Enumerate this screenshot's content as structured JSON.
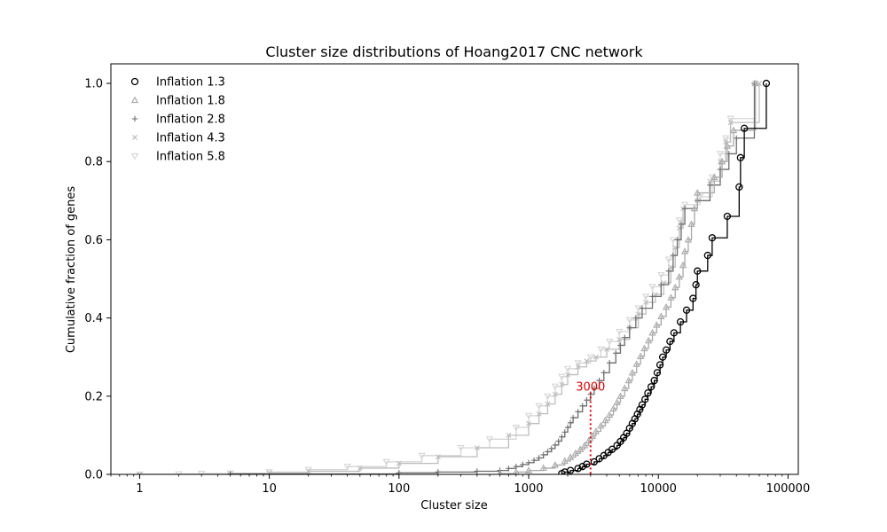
{
  "chart_data": {
    "type": "line",
    "title": "Cluster size distributions of Hoang2017 CNC network",
    "xlabel": "Cluster size",
    "ylabel": "Cumulative fraction of genes",
    "xscale": "log",
    "xlim": [
      0.6,
      120000
    ],
    "ylim": [
      0,
      1.05
    ],
    "xticks": [
      1,
      10,
      100,
      1000,
      10000,
      100000
    ],
    "xtick_labels": [
      "1",
      "10",
      "100",
      "1000",
      "10000",
      "100000"
    ],
    "yticks": [
      0,
      0.2,
      0.4,
      0.6,
      0.8,
      1.0
    ],
    "ytick_labels": [
      "0.0",
      "0.2",
      "0.4",
      "0.6",
      "0.8",
      "1.0"
    ],
    "grid": false,
    "legend_position": "top-left",
    "annotation": {
      "text": "3000",
      "x": 3000,
      "y_top": 0.21,
      "color": "#e00000"
    },
    "series": [
      {
        "name": "Inflation 1.3",
        "color": "#000000",
        "marker": "circle",
        "points": [
          [
            1800,
            0.002
          ],
          [
            1900,
            0.006
          ],
          [
            2100,
            0.01
          ],
          [
            2400,
            0.015
          ],
          [
            2600,
            0.02
          ],
          [
            2800,
            0.026
          ],
          [
            3200,
            0.032
          ],
          [
            3500,
            0.04
          ],
          [
            3800,
            0.048
          ],
          [
            4100,
            0.056
          ],
          [
            4400,
            0.064
          ],
          [
            4800,
            0.074
          ],
          [
            5100,
            0.084
          ],
          [
            5400,
            0.094
          ],
          [
            5700,
            0.105
          ],
          [
            6000,
            0.118
          ],
          [
            6300,
            0.13
          ],
          [
            6600,
            0.142
          ],
          [
            6900,
            0.154
          ],
          [
            7200,
            0.166
          ],
          [
            7500,
            0.178
          ],
          [
            7900,
            0.192
          ],
          [
            8300,
            0.208
          ],
          [
            8800,
            0.224
          ],
          [
            9300,
            0.24
          ],
          [
            9800,
            0.26
          ],
          [
            10300,
            0.28
          ],
          [
            10800,
            0.3
          ],
          [
            11500,
            0.318
          ],
          [
            12300,
            0.34
          ],
          [
            13200,
            0.362
          ],
          [
            14800,
            0.39
          ],
          [
            16500,
            0.42
          ],
          [
            18500,
            0.45
          ],
          [
            19500,
            0.485
          ],
          [
            20000,
            0.52
          ],
          [
            24000,
            0.56
          ],
          [
            26000,
            0.605
          ],
          [
            34000,
            0.66
          ],
          [
            42000,
            0.735
          ],
          [
            43000,
            0.81
          ],
          [
            46000,
            0.885
          ],
          [
            68000,
            1.0
          ]
        ]
      },
      {
        "name": "Inflation 1.8",
        "color": "#a8a8a8",
        "marker": "triangle-up",
        "points": [
          [
            600,
            0.002
          ],
          [
            800,
            0.006
          ],
          [
            1000,
            0.01
          ],
          [
            1300,
            0.016
          ],
          [
            1600,
            0.024
          ],
          [
            1900,
            0.034
          ],
          [
            2100,
            0.044
          ],
          [
            2300,
            0.054
          ],
          [
            2500,
            0.064
          ],
          [
            2700,
            0.074
          ],
          [
            2900,
            0.086
          ],
          [
            3100,
            0.098
          ],
          [
            3300,
            0.11
          ],
          [
            3600,
            0.124
          ],
          [
            3900,
            0.138
          ],
          [
            4200,
            0.152
          ],
          [
            4500,
            0.168
          ],
          [
            4800,
            0.184
          ],
          [
            5100,
            0.2
          ],
          [
            5500,
            0.22
          ],
          [
            5900,
            0.24
          ],
          [
            6300,
            0.26
          ],
          [
            6800,
            0.282
          ],
          [
            7300,
            0.302
          ],
          [
            7800,
            0.322
          ],
          [
            8400,
            0.342
          ],
          [
            9000,
            0.362
          ],
          [
            9700,
            0.382
          ],
          [
            10500,
            0.404
          ],
          [
            11500,
            0.428
          ],
          [
            12500,
            0.452
          ],
          [
            13500,
            0.478
          ],
          [
            14500,
            0.505
          ],
          [
            15500,
            0.535
          ],
          [
            16000,
            0.57
          ],
          [
            17000,
            0.6
          ],
          [
            18000,
            0.64
          ],
          [
            19000,
            0.68
          ],
          [
            20000,
            0.72
          ],
          [
            27000,
            0.76
          ],
          [
            31000,
            0.8
          ],
          [
            34000,
            0.84
          ],
          [
            38000,
            0.88
          ],
          [
            56000,
            1.0
          ]
        ]
      },
      {
        "name": "Inflation 2.8",
        "color": "#6e6e6e",
        "marker": "plus",
        "points": [
          [
            5,
            0.001
          ],
          [
            100,
            0.004
          ],
          [
            200,
            0.006
          ],
          [
            400,
            0.008
          ],
          [
            600,
            0.01
          ],
          [
            700,
            0.015
          ],
          [
            800,
            0.02
          ],
          [
            900,
            0.025
          ],
          [
            1000,
            0.03
          ],
          [
            1100,
            0.036
          ],
          [
            1200,
            0.042
          ],
          [
            1300,
            0.05
          ],
          [
            1400,
            0.058
          ],
          [
            1500,
            0.066
          ],
          [
            1600,
            0.075
          ],
          [
            1700,
            0.085
          ],
          [
            1800,
            0.096
          ],
          [
            1900,
            0.108
          ],
          [
            2000,
            0.12
          ],
          [
            2100,
            0.132
          ],
          [
            2200,
            0.145
          ],
          [
            2400,
            0.16
          ],
          [
            2600,
            0.175
          ],
          [
            2800,
            0.19
          ],
          [
            3000,
            0.205
          ],
          [
            3200,
            0.22
          ],
          [
            3500,
            0.24
          ],
          [
            3800,
            0.26
          ],
          [
            4200,
            0.285
          ],
          [
            4700,
            0.31
          ],
          [
            5100,
            0.33
          ],
          [
            5500,
            0.35
          ],
          [
            6000,
            0.375
          ],
          [
            6700,
            0.4
          ],
          [
            7500,
            0.425
          ],
          [
            9000,
            0.455
          ],
          [
            10500,
            0.485
          ],
          [
            12000,
            0.52
          ],
          [
            13000,
            0.56
          ],
          [
            14000,
            0.6
          ],
          [
            15000,
            0.64
          ],
          [
            16000,
            0.68
          ],
          [
            20000,
            0.7
          ],
          [
            25000,
            0.74
          ],
          [
            30000,
            0.78
          ],
          [
            35000,
            0.82
          ],
          [
            40000,
            0.86
          ],
          [
            55000,
            1.0
          ]
        ]
      },
      {
        "name": "Inflation 4.3",
        "color": "#bdbdbd",
        "marker": "x",
        "points": [
          [
            1,
            0.0
          ],
          [
            5,
            0.001
          ],
          [
            10,
            0.004
          ],
          [
            20,
            0.008
          ],
          [
            50,
            0.016
          ],
          [
            100,
            0.028
          ],
          [
            200,
            0.045
          ],
          [
            400,
            0.068
          ],
          [
            700,
            0.1
          ],
          [
            1000,
            0.13
          ],
          [
            1200,
            0.155
          ],
          [
            1400,
            0.18
          ],
          [
            1600,
            0.205
          ],
          [
            1800,
            0.23
          ],
          [
            2000,
            0.255
          ],
          [
            2400,
            0.275
          ],
          [
            2800,
            0.29
          ],
          [
            3300,
            0.3
          ],
          [
            4000,
            0.32
          ],
          [
            5000,
            0.345
          ],
          [
            6000,
            0.375
          ],
          [
            7000,
            0.41
          ],
          [
            8000,
            0.44
          ],
          [
            9500,
            0.46
          ],
          [
            11000,
            0.49
          ],
          [
            12500,
            0.53
          ],
          [
            13500,
            0.58
          ],
          [
            14500,
            0.63
          ],
          [
            15500,
            0.68
          ],
          [
            20000,
            0.7
          ],
          [
            25000,
            0.75
          ],
          [
            30000,
            0.8
          ],
          [
            33000,
            0.85
          ],
          [
            36000,
            0.9
          ],
          [
            60000,
            1.0
          ]
        ]
      },
      {
        "name": "Inflation 5.8",
        "color": "#d6d6d6",
        "marker": "triangle-down",
        "points": [
          [
            1,
            0.0
          ],
          [
            2,
            0.001
          ],
          [
            3,
            0.002
          ],
          [
            5,
            0.003
          ],
          [
            10,
            0.006
          ],
          [
            20,
            0.012
          ],
          [
            40,
            0.02
          ],
          [
            80,
            0.032
          ],
          [
            150,
            0.048
          ],
          [
            300,
            0.068
          ],
          [
            500,
            0.09
          ],
          [
            800,
            0.12
          ],
          [
            1000,
            0.15
          ],
          [
            1200,
            0.175
          ],
          [
            1400,
            0.2
          ],
          [
            1600,
            0.225
          ],
          [
            1800,
            0.25
          ],
          [
            2000,
            0.27
          ],
          [
            2400,
            0.285
          ],
          [
            3000,
            0.3
          ],
          [
            3600,
            0.32
          ],
          [
            4200,
            0.34
          ],
          [
            5000,
            0.365
          ],
          [
            6000,
            0.395
          ],
          [
            7000,
            0.425
          ],
          [
            8000,
            0.455
          ],
          [
            9000,
            0.48
          ],
          [
            10500,
            0.51
          ],
          [
            12000,
            0.55
          ],
          [
            13000,
            0.6
          ],
          [
            14500,
            0.65
          ],
          [
            16000,
            0.69
          ],
          [
            21000,
            0.71
          ],
          [
            26000,
            0.76
          ],
          [
            30000,
            0.82
          ],
          [
            33000,
            0.86
          ],
          [
            36000,
            0.91
          ],
          [
            56000,
            1.0
          ]
        ]
      }
    ]
  }
}
